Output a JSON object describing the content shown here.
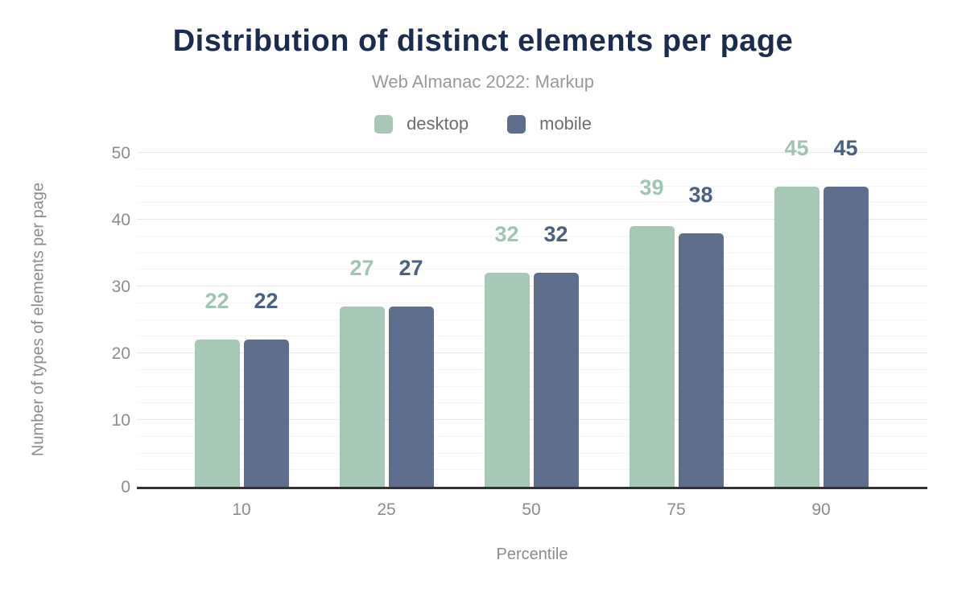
{
  "chart_data": {
    "type": "bar",
    "title": "Distribution of distinct elements per page",
    "subtitle": "Web Almanac 2022: Markup",
    "xlabel": "Percentile",
    "ylabel": "Number of types of elements per page",
    "categories": [
      "10",
      "25",
      "50",
      "75",
      "90"
    ],
    "series": [
      {
        "name": "desktop",
        "color": "#a7c8b6",
        "label_color": "#a2c5b1",
        "values": [
          22,
          27,
          32,
          39,
          45
        ]
      },
      {
        "name": "mobile",
        "color": "#5e6e8c",
        "label_color": "#4c6085",
        "values": [
          22,
          27,
          32,
          38,
          45
        ]
      }
    ],
    "ylim": [
      0,
      50
    ],
    "y_major_ticks": [
      0,
      10,
      20,
      30,
      40,
      50
    ],
    "y_minor_step": 2.5,
    "grid": true,
    "legend_position": "top",
    "bar_corner_radius": 5
  },
  "colors": {
    "title": "#1c2b50",
    "subtitle": "#9a9a9a",
    "legend_text": "#6e6e6e",
    "axis_text": "#8c8c8c",
    "baseline": "#333333",
    "gridline_major": "#e8e8e8",
    "gridline_minor": "#f5f5f5",
    "background": "#ffffff"
  }
}
